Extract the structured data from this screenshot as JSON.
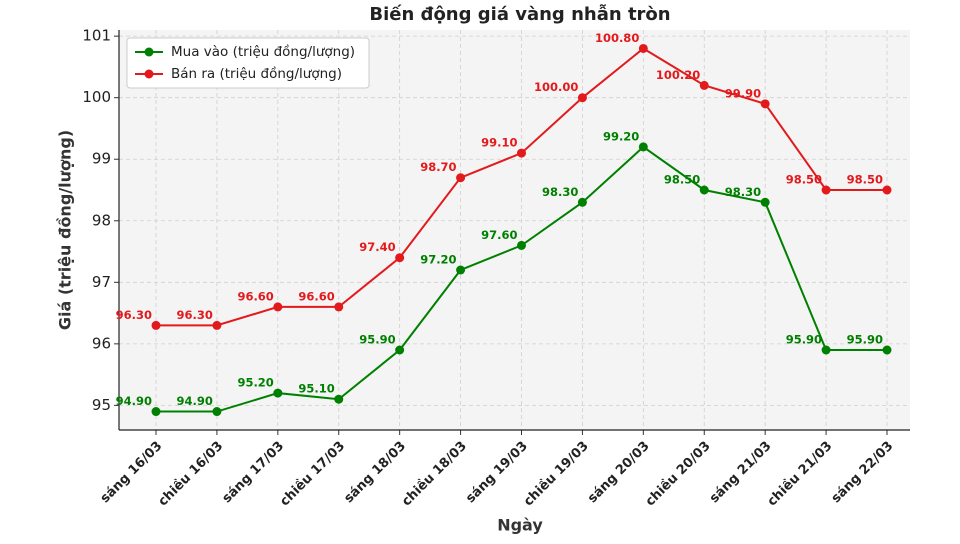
{
  "chart_data": {
    "type": "line",
    "title": "Biến động giá vàng nhẫn tròn",
    "x_label": "Ngày",
    "y_label": "Giá (triệu đồng/lượng)",
    "categories": [
      "sáng 16/03",
      "chiều 16/03",
      "sáng 17/03",
      "chiều 17/03",
      "sáng 18/03",
      "chiều 18/03",
      "sáng 19/03",
      "chiều 19/03",
      "sáng 20/03",
      "chiều 20/03",
      "sáng 21/03",
      "chiều 21/03",
      "sáng 22/03"
    ],
    "series": [
      {
        "name": "Mua vào (triệu đồng/lượng)",
        "color": "#008000",
        "values": [
          94.9,
          94.9,
          95.2,
          95.1,
          95.9,
          97.2,
          97.6,
          98.3,
          99.2,
          98.5,
          98.3,
          95.9,
          95.9
        ],
        "value_labels": [
          "94.90",
          "94.90",
          "95.20",
          "95.10",
          "95.90",
          "97.20",
          "97.60",
          "98.30",
          "99.20",
          "98.50",
          "98.30",
          "95.90",
          "95.90"
        ]
      },
      {
        "name": "Bán ra (triệu đồng/lượng)",
        "color": "#e31a1c",
        "values": [
          96.3,
          96.3,
          96.6,
          96.6,
          97.4,
          98.7,
          99.1,
          100.0,
          100.8,
          100.2,
          99.9,
          98.5,
          98.5
        ],
        "value_labels": [
          "96.30",
          "96.30",
          "96.60",
          "96.60",
          "97.40",
          "98.70",
          "99.10",
          "100.00",
          "100.80",
          "100.20",
          "99.90",
          "98.50",
          "98.50"
        ]
      }
    ],
    "ylim": [
      94.6,
      101.1
    ],
    "yticks": [
      95,
      96,
      97,
      98,
      99,
      100,
      101
    ],
    "grid": true,
    "legend": "upper-left"
  }
}
